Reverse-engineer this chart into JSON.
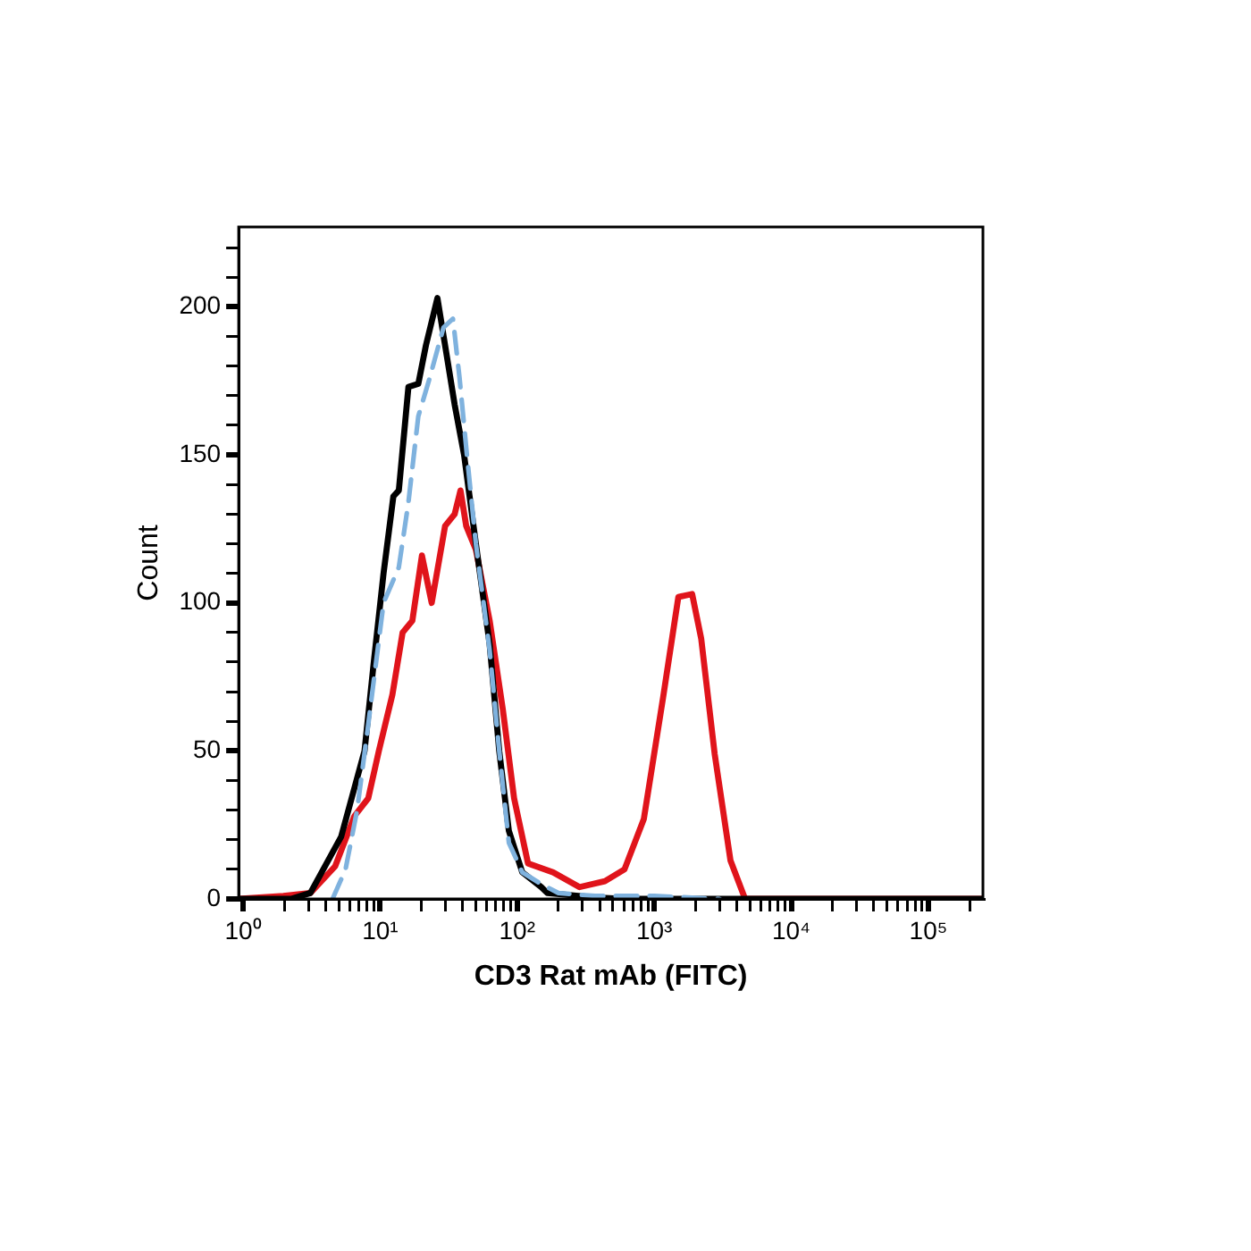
{
  "chart_data": {
    "type": "line",
    "xlabel": "CD3 Rat mAb (FITC)",
    "ylabel": "Count",
    "log": "x",
    "grid": false,
    "legend": false,
    "marker": "none",
    "xlim": [
      0.93,
      250000
    ],
    "ylim": [
      0,
      227
    ],
    "xticks": [
      {
        "value": 1,
        "label": "10⁰"
      },
      {
        "value": 2,
        "label": null
      },
      {
        "value": 3,
        "label": null
      },
      {
        "value": 4,
        "label": null
      },
      {
        "value": 5,
        "label": null
      },
      {
        "value": 6,
        "label": null
      },
      {
        "value": 7,
        "label": null
      },
      {
        "value": 8,
        "label": null
      },
      {
        "value": 9,
        "label": null
      },
      {
        "value": 10,
        "label": "10¹"
      },
      {
        "value": 20,
        "label": null
      },
      {
        "value": 30,
        "label": null
      },
      {
        "value": 40,
        "label": null
      },
      {
        "value": 50,
        "label": null
      },
      {
        "value": 60,
        "label": null
      },
      {
        "value": 70,
        "label": null
      },
      {
        "value": 80,
        "label": null
      },
      {
        "value": 90,
        "label": null
      },
      {
        "value": 100,
        "label": "10²"
      },
      {
        "value": 200,
        "label": null
      },
      {
        "value": 300,
        "label": null
      },
      {
        "value": 400,
        "label": null
      },
      {
        "value": 500,
        "label": null
      },
      {
        "value": 600,
        "label": null
      },
      {
        "value": 700,
        "label": null
      },
      {
        "value": 800,
        "label": null
      },
      {
        "value": 900,
        "label": null
      },
      {
        "value": 1000,
        "label": "10³"
      },
      {
        "value": 2000,
        "label": null
      },
      {
        "value": 3000,
        "label": null
      },
      {
        "value": 4000,
        "label": null
      },
      {
        "value": 5000,
        "label": null
      },
      {
        "value": 6000,
        "label": null
      },
      {
        "value": 7000,
        "label": null
      },
      {
        "value": 8000,
        "label": null
      },
      {
        "value": 9000,
        "label": null
      },
      {
        "value": 10000,
        "label": "10⁴"
      },
      {
        "value": 20000,
        "label": null
      },
      {
        "value": 30000,
        "label": null
      },
      {
        "value": 40000,
        "label": null
      },
      {
        "value": 50000,
        "label": null
      },
      {
        "value": 60000,
        "label": null
      },
      {
        "value": 70000,
        "label": null
      },
      {
        "value": 80000,
        "label": null
      },
      {
        "value": 90000,
        "label": null
      },
      {
        "value": 100000,
        "label": "10⁵"
      },
      {
        "value": 200000,
        "label": null
      }
    ],
    "yticks": [
      0,
      {
        "value": 10,
        "label": null
      },
      {
        "value": 20,
        "label": null
      },
      {
        "value": 30,
        "label": null
      },
      {
        "value": 40,
        "label": null
      },
      50,
      {
        "value": 60,
        "label": null
      },
      {
        "value": 70,
        "label": null
      },
      {
        "value": 80,
        "label": null
      },
      {
        "value": 90,
        "label": null
      },
      100,
      {
        "value": 110,
        "label": null
      },
      {
        "value": 120,
        "label": null
      },
      {
        "value": 130,
        "label": null
      },
      {
        "value": 140,
        "label": null
      },
      150,
      {
        "value": 160,
        "label": null
      },
      {
        "value": 170,
        "label": null
      },
      {
        "value": 180,
        "label": null
      },
      {
        "value": 190,
        "label": null
      },
      200,
      {
        "value": 210,
        "label": null
      },
      {
        "value": 220,
        "label": null
      }
    ],
    "series": [
      {
        "color": "#7fb2de",
        "line_style": "dashed",
        "x": [
          4.5,
          5.6,
          6.8,
          8.0,
          10.6,
          13.7,
          16.1,
          19,
          23,
          29,
          34,
          38,
          43,
          50,
          63,
          74,
          87,
          109,
          150,
          200,
          370,
          1000,
          3000
        ],
        "values": [
          0,
          10,
          30,
          55,
          100,
          112,
          134,
          163,
          176,
          193,
          196,
          176,
          150,
          120,
          84,
          50,
          19,
          9,
          5,
          2,
          1,
          1,
          0
        ]
      },
      {
        "color": "#000000",
        "line_style": "solid",
        "x": [
          0.93,
          2.24,
          3.1,
          5.2,
          7.7,
          9.0,
          10.6,
          12.5,
          13.7,
          16.1,
          19,
          21.6,
          26.2,
          29.8,
          35,
          41,
          50,
          63,
          74,
          87,
          109,
          150,
          166,
          372,
          600,
          250000
        ],
        "values": [
          0,
          0,
          2,
          21,
          50,
          80,
          110,
          136,
          138,
          173,
          174,
          187,
          203,
          187,
          167,
          150,
          120,
          86,
          50,
          23,
          9,
          4,
          2,
          0.5,
          0,
          0
        ]
      },
      {
        "color": "#e0141b",
        "line_style": "solid",
        "x": [
          0.93,
          1.97,
          3.1,
          4.7,
          6.5,
          8.2,
          9.8,
          12.3,
          14.6,
          17.2,
          20.2,
          23.8,
          29.8,
          35,
          38.6,
          42.5,
          50,
          63,
          78.6,
          95,
          120,
          183,
          285,
          437,
          607,
          840,
          1160,
          1500,
          1890,
          2200,
          2760,
          3600,
          4600,
          250000
        ],
        "values": [
          0,
          1,
          2,
          11,
          28,
          34,
          50,
          69,
          90,
          94,
          116,
          100,
          126,
          130,
          138,
          126,
          118,
          94,
          64,
          34,
          12,
          9,
          4,
          6,
          10,
          27,
          68,
          102,
          103,
          88,
          49,
          13,
          0,
          0
        ]
      }
    ]
  }
}
